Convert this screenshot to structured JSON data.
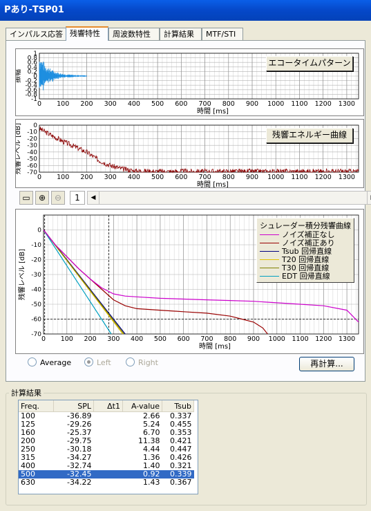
{
  "window": {
    "title": "Pあり-TSP01"
  },
  "tabs": [
    {
      "label": "インパルス応答"
    },
    {
      "label": "残響特性"
    },
    {
      "label": "周波数特性"
    },
    {
      "label": "計算結果"
    },
    {
      "label": "MTF/STI"
    }
  ],
  "echo_chart": {
    "button_label": "エコータイムパターン",
    "ylabel": "振幅",
    "xlabel": "時間 [ms]",
    "yticks": [
      "1",
      "0.8",
      "0.6",
      "0.4",
      "0.2",
      "0",
      "-0.2",
      "-0.4",
      "-0.6",
      "-0.8",
      "-1"
    ],
    "xticks": [
      "0",
      "100",
      "200",
      "300",
      "400",
      "500",
      "600",
      "700",
      "800",
      "900",
      "1000",
      "1100",
      "1200",
      "1300"
    ]
  },
  "energy_chart": {
    "button_label": "残響エネルギー曲線",
    "ylabel": "残響レベル [dB]",
    "xlabel": "時間 [ms]",
    "yticks": [
      "0",
      "-10",
      "-20",
      "-30",
      "-40",
      "-50",
      "-60",
      "-70"
    ],
    "xticks": [
      "0",
      "100",
      "200",
      "300",
      "400",
      "500",
      "600",
      "700",
      "800",
      "900",
      "1000",
      "1100",
      "1200",
      "1300"
    ]
  },
  "toolbar": {
    "page_value": "1"
  },
  "decay_chart": {
    "ylabel": "残響レベル [dB]",
    "xlabel": "時間 [ms]",
    "yticks": [
      "0",
      "-10",
      "-20",
      "-30",
      "-40",
      "-50",
      "-60",
      "-70"
    ],
    "xticks": [
      "0",
      "100",
      "200",
      "300",
      "400",
      "500",
      "600",
      "700",
      "800",
      "900",
      "1000",
      "1100",
      "1200",
      "1300"
    ],
    "legend_title": "シュレーダー積分残響曲線",
    "legend": [
      {
        "label": "ノイズ補正なし",
        "color": "#cc00cc"
      },
      {
        "label": "ノイズ補正あり",
        "color": "#990000"
      },
      {
        "label": "Tsub 回帰直線",
        "color": "#000080"
      },
      {
        "label": "T20 回帰直線",
        "color": "#e0c000"
      },
      {
        "label": "T30 回帰直線",
        "color": "#808000"
      },
      {
        "label": "EDT 回帰直線",
        "color": "#00a0c0"
      }
    ]
  },
  "options": {
    "average": "Average",
    "left": "Left",
    "right": "Right",
    "recalc": "再計算..."
  },
  "results": {
    "group_label": "計算結果",
    "columns": [
      "Freq.",
      "SPL",
      "Δt1",
      "A-value",
      "Tsub"
    ],
    "rows": [
      [
        "100",
        "-36.89",
        "",
        "2.66",
        "0.337"
      ],
      [
        "125",
        "-29.26",
        "",
        "5.24",
        "0.455"
      ],
      [
        "160",
        "-25.37",
        "",
        "6.70",
        "0.353"
      ],
      [
        "200",
        "-29.75",
        "",
        "11.38",
        "0.421"
      ],
      [
        "250",
        "-30.18",
        "",
        "4.44",
        "0.447"
      ],
      [
        "315",
        "-34.27",
        "",
        "1.36",
        "0.426"
      ],
      [
        "400",
        "-32.74",
        "",
        "1.40",
        "0.321"
      ],
      [
        "500",
        "-32.45",
        "",
        "0.92",
        "0.339"
      ],
      [
        "630",
        "-34.22",
        "",
        "1.43",
        "0.367"
      ]
    ],
    "selected_row": 7
  },
  "chart_data": [
    {
      "type": "line",
      "title": "エコータイムパターン",
      "xlabel": "時間 [ms]",
      "ylabel": "振幅",
      "xlim": [
        0,
        1350
      ],
      "ylim": [
        -1,
        1
      ],
      "series": [
        {
          "name": "振幅",
          "envelope_decay_end_ms": 200
        }
      ]
    },
    {
      "type": "line",
      "title": "残響エネルギー曲線",
      "xlabel": "時間 [ms]",
      "ylabel": "残響レベル [dB]",
      "xlim": [
        0,
        1350
      ],
      "ylim": [
        -70,
        0
      ],
      "series": [
        {
          "name": "残響レベル",
          "x": [
            0,
            50,
            100,
            150,
            200,
            250,
            300,
            350,
            400,
            500,
            600,
            800,
            1000,
            1350
          ],
          "y": [
            -5,
            -15,
            -24,
            -32,
            -40,
            -52,
            -60,
            -65,
            -68,
            -69,
            -69,
            -69,
            -69,
            -69
          ]
        }
      ]
    },
    {
      "type": "line",
      "title": "シュレーダー積分残響曲線",
      "xlabel": "時間 [ms]",
      "ylabel": "残響レベル [dB]",
      "xlim": [
        0,
        1350
      ],
      "ylim": [
        -70,
        10
      ],
      "series": [
        {
          "name": "ノイズ補正なし",
          "x": [
            0,
            50,
            100,
            150,
            200,
            250,
            300,
            350,
            400,
            500,
            600,
            700,
            800,
            900,
            1000,
            1100,
            1200,
            1300,
            1350
          ],
          "y": [
            0,
            -10,
            -18,
            -26,
            -33,
            -39,
            -43,
            -44.5,
            -45,
            -46,
            -46.5,
            -47,
            -47.5,
            -48,
            -49,
            -50,
            -51,
            -54,
            -62
          ]
        },
        {
          "name": "ノイズ補正あり",
          "x": [
            0,
            50,
            100,
            150,
            200,
            250,
            300,
            350,
            400,
            500,
            600,
            700,
            800,
            850,
            900,
            920,
            940,
            960
          ],
          "y": [
            0,
            -10,
            -18,
            -26,
            -33,
            -40,
            -47,
            -51,
            -53,
            -54,
            -55,
            -56,
            -58,
            -60,
            -62,
            -64,
            -66,
            -70
          ]
        },
        {
          "name": "Tsub 回帰直線",
          "x": [
            0,
            350
          ],
          "y": [
            0,
            -70
          ]
        },
        {
          "name": "T20 回帰直線",
          "x": [
            0,
            340
          ],
          "y": [
            0,
            -70
          ]
        },
        {
          "name": "T30 回帰直線",
          "x": [
            0,
            345
          ],
          "y": [
            0,
            -70
          ]
        },
        {
          "name": "EDT 回帰直線",
          "x": [
            0,
            290
          ],
          "y": [
            0,
            -70
          ]
        }
      ]
    }
  ]
}
